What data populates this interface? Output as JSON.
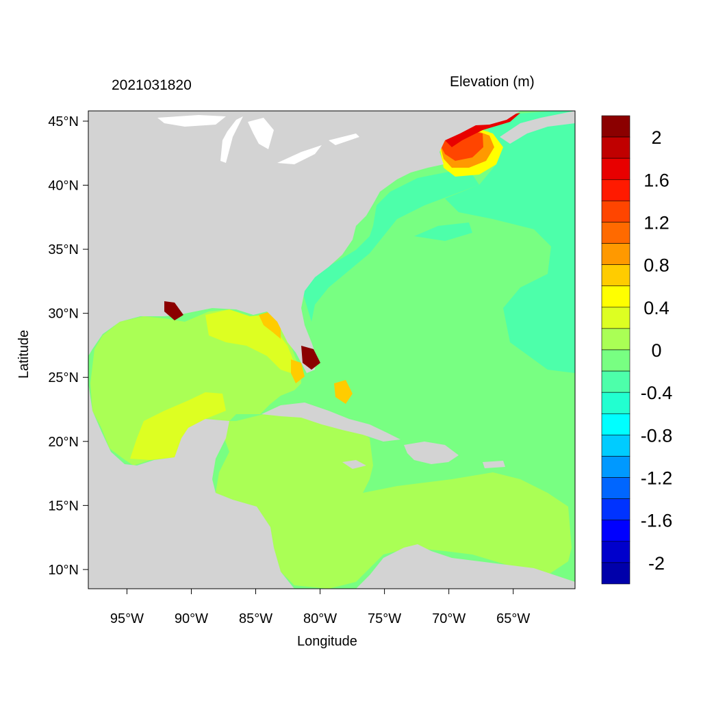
{
  "title_left": "2021031820",
  "title_right": "Elevation (m)",
  "xlabel": "Longitude",
  "ylabel": "Latitude",
  "x_ticks": [
    "95°W",
    "90°W",
    "85°W",
    "80°W",
    "75°W",
    "70°W",
    "65°W"
  ],
  "y_ticks": [
    "45°N",
    "40°N",
    "35°N",
    "30°N",
    "25°N",
    "20°N",
    "15°N",
    "10°N"
  ],
  "x_tick_values": [
    -95,
    -90,
    -85,
    -80,
    -75,
    -70,
    -65
  ],
  "y_tick_values": [
    45,
    40,
    35,
    30,
    25,
    20,
    15,
    10
  ],
  "extent": {
    "lon": [
      -98,
      -60.2
    ],
    "lat": [
      8.5,
      45.8
    ]
  },
  "colors": {
    "land": "#d3d3d3",
    "ocean_base": "#78ff82",
    "gulf": "#aaff55",
    "caribbean": "#aaff55"
  },
  "colorbar": {
    "labels": [
      "2",
      "1.6",
      "1.2",
      "0.8",
      "0.4",
      "0",
      "-0.4",
      "-0.8",
      "-1.2",
      "-1.6",
      "-2"
    ],
    "colors": [
      "#8b0000",
      "#c00000",
      "#e80000",
      "#ff1a00",
      "#ff4500",
      "#ff6a00",
      "#ff9900",
      "#ffcc00",
      "#ffff00",
      "#ddff22",
      "#aaff55",
      "#78ff82",
      "#4dffaa",
      "#22ffd0",
      "#00ffff",
      "#00ccff",
      "#0099ff",
      "#0066ff",
      "#0033ff",
      "#0000ff",
      "#0000cc",
      "#0000aa"
    ]
  }
}
